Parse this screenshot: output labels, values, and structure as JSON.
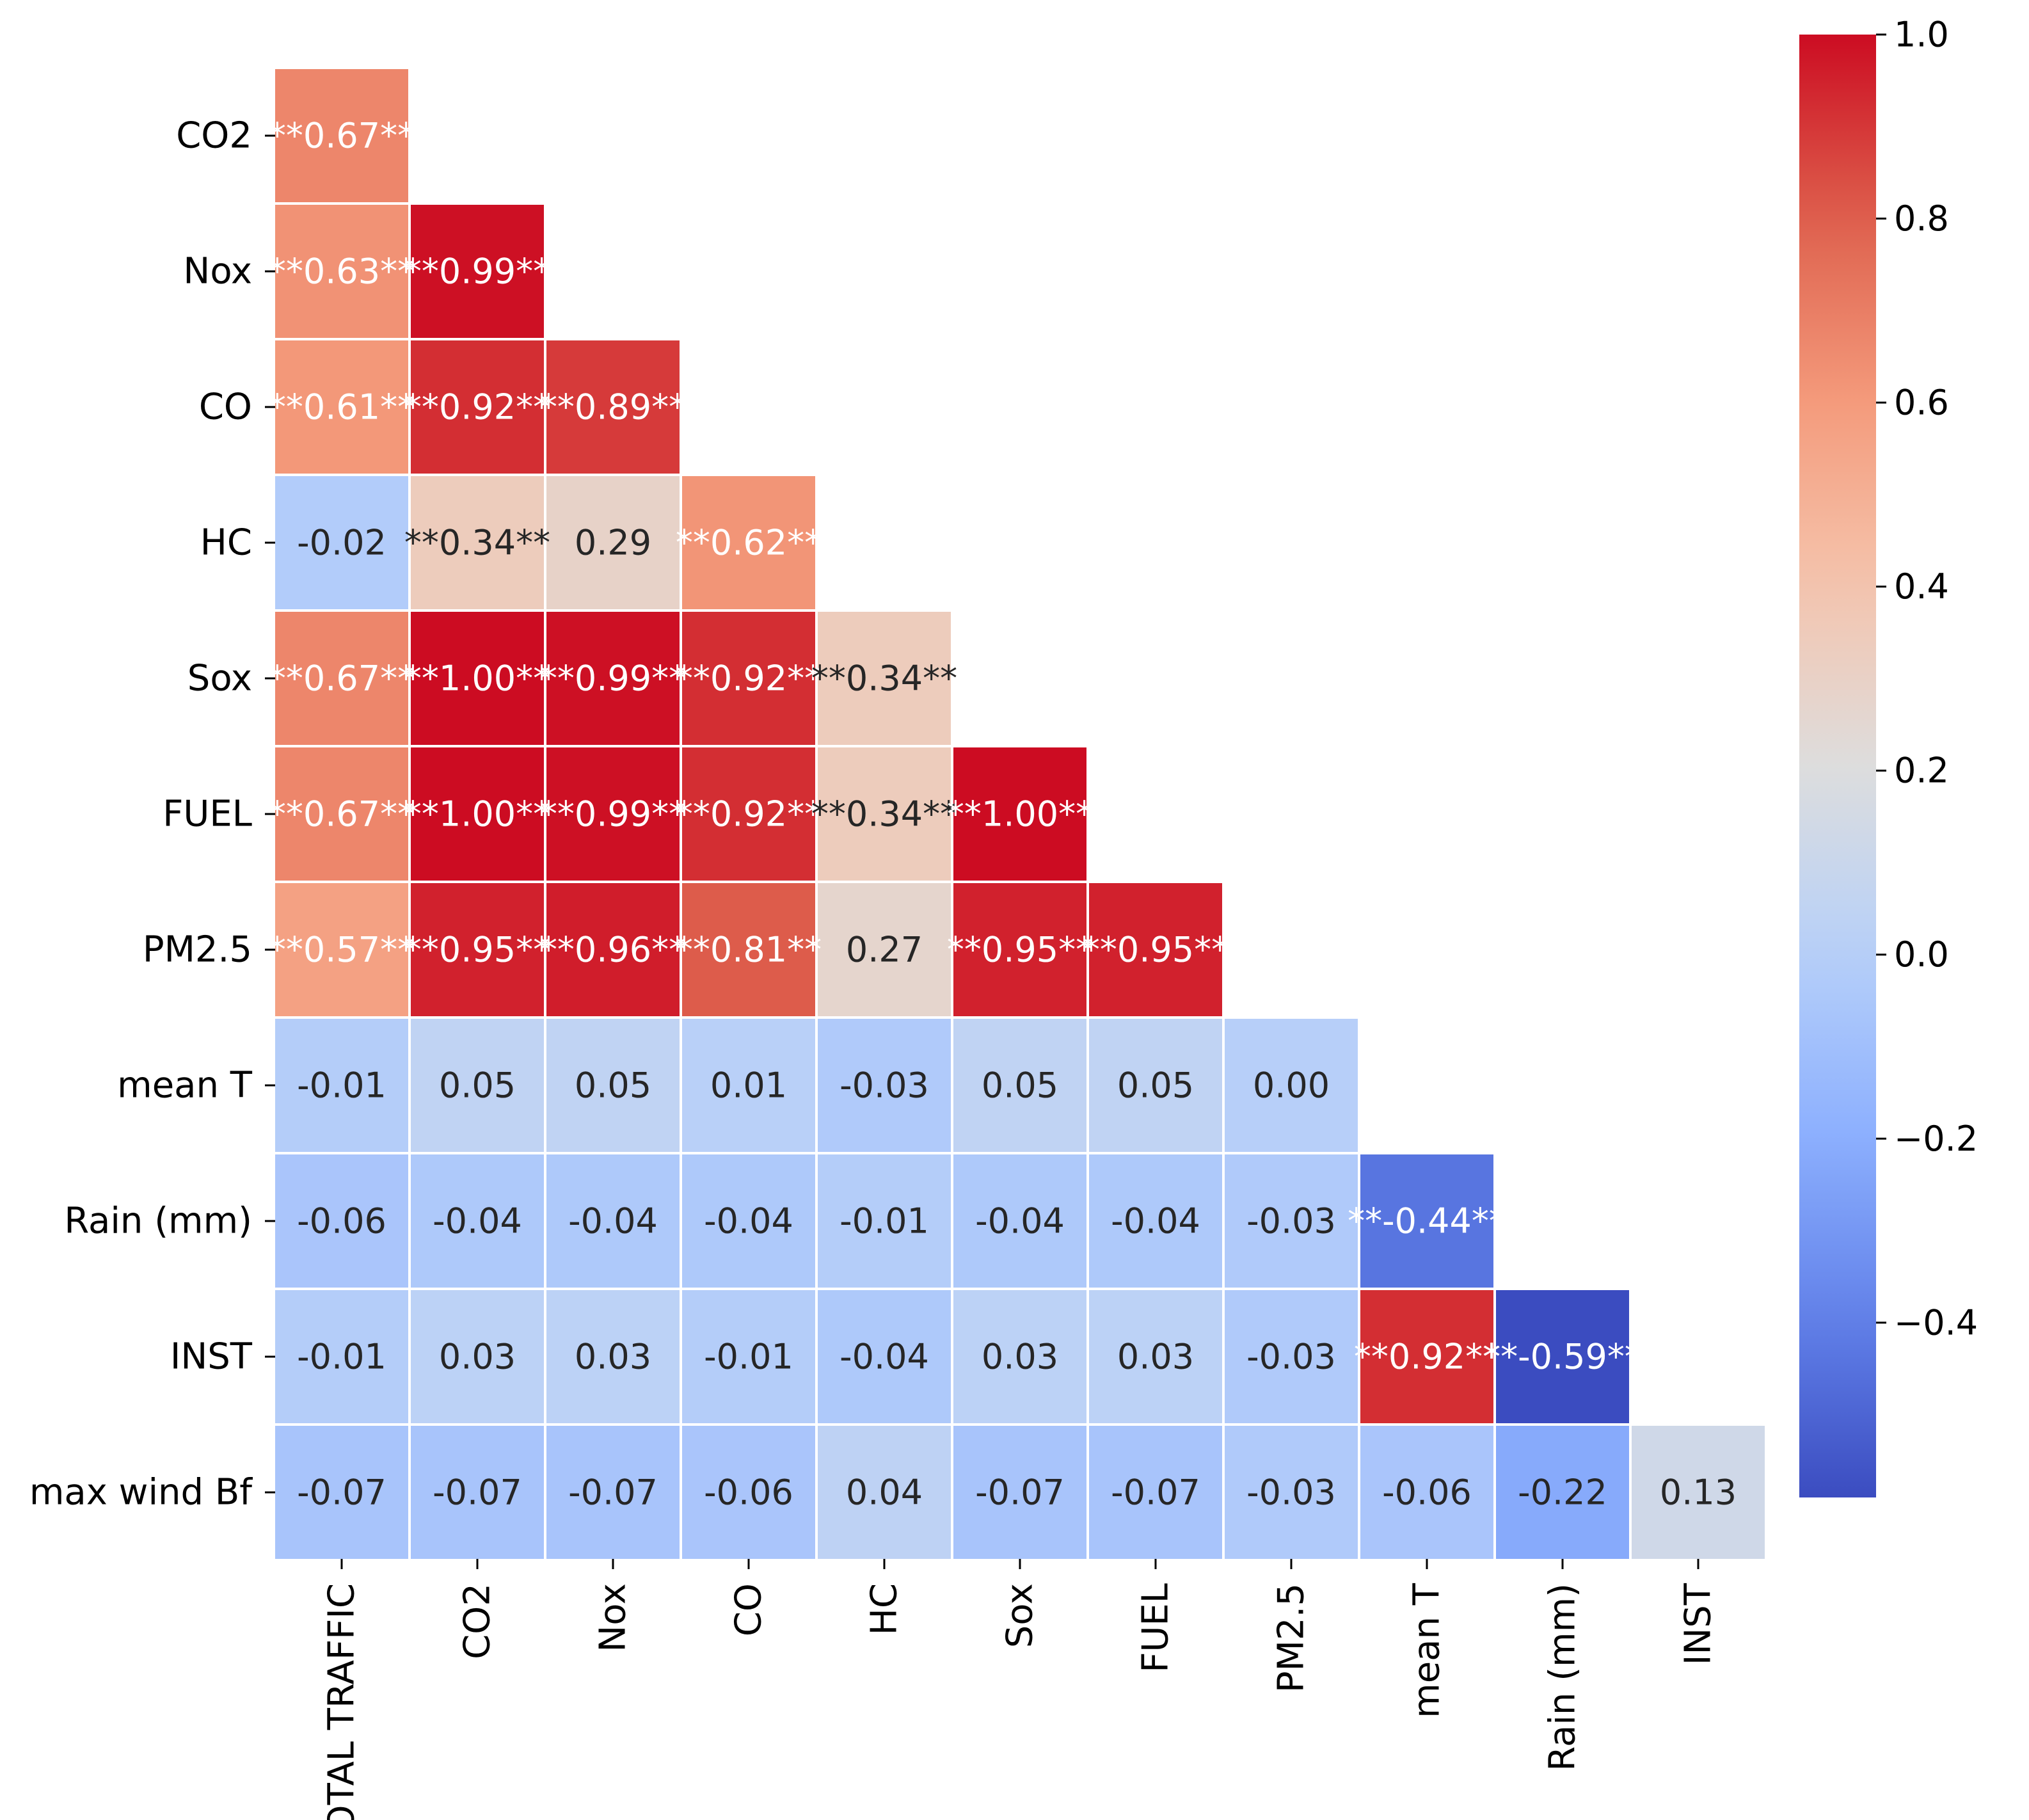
{
  "chart_data": {
    "type": "heatmap",
    "title": "",
    "mask": "lower-triangle",
    "row_labels": [
      "CO2",
      "Nox",
      "CO",
      "HC",
      "Sox",
      "FUEL",
      "PM2.5",
      "mean T",
      "Rain (mm)",
      "INST",
      "max wind Bf"
    ],
    "col_labels": [
      "TOTAL TRAFFIC",
      "CO2",
      "Nox",
      "CO",
      "HC",
      "Sox",
      "FUEL",
      "PM2.5",
      "mean T",
      "Rain (mm)",
      "INST"
    ],
    "values": [
      [
        0.67
      ],
      [
        0.63,
        0.99
      ],
      [
        0.61,
        0.92,
        0.89
      ],
      [
        -0.02,
        0.34,
        0.29,
        0.62
      ],
      [
        0.67,
        1.0,
        0.99,
        0.92,
        0.34
      ],
      [
        0.67,
        1.0,
        0.99,
        0.92,
        0.34,
        1.0
      ],
      [
        0.57,
        0.95,
        0.96,
        0.81,
        0.27,
        0.95,
        0.95
      ],
      [
        -0.01,
        0.05,
        0.05,
        0.01,
        -0.03,
        0.05,
        0.05,
        0.0
      ],
      [
        -0.06,
        -0.04,
        -0.04,
        -0.04,
        -0.01,
        -0.04,
        -0.04,
        -0.03,
        -0.44
      ],
      [
        -0.01,
        0.03,
        0.03,
        -0.01,
        -0.04,
        0.03,
        0.03,
        -0.03,
        0.92,
        -0.59
      ],
      [
        -0.07,
        -0.07,
        -0.07,
        -0.06,
        0.04,
        -0.07,
        -0.07,
        -0.03,
        -0.06,
        -0.22,
        0.13
      ]
    ],
    "annotations": [
      [
        "**0.67**"
      ],
      [
        "**0.63**",
        "**0.99**"
      ],
      [
        "**0.61**",
        "**0.92**",
        "**0.89**"
      ],
      [
        "-0.02",
        "**0.34**",
        "0.29",
        "**0.62**"
      ],
      [
        "**0.67**",
        "**1.00**",
        "**0.99**",
        "**0.92**",
        "**0.34**"
      ],
      [
        "**0.67**",
        "**1.00**",
        "**0.99**",
        "**0.92**",
        "**0.34**",
        "**1.00**"
      ],
      [
        "**0.57**",
        "**0.95**",
        "**0.96**",
        "**0.81**",
        "0.27",
        "**0.95**",
        "**0.95**"
      ],
      [
        "-0.01",
        "0.05",
        "0.05",
        "0.01",
        "-0.03",
        "0.05",
        "0.05",
        "0.00"
      ],
      [
        "-0.06",
        "-0.04",
        "-0.04",
        "-0.04",
        "-0.01",
        "-0.04",
        "-0.04",
        "-0.03",
        "**-0.44**"
      ],
      [
        "-0.01",
        "0.03",
        "0.03",
        "-0.01",
        "-0.04",
        "0.03",
        "0.03",
        "-0.03",
        "**0.92**",
        "**-0.59**"
      ],
      [
        "-0.07",
        "-0.07",
        "-0.07",
        "-0.06",
        "0.04",
        "-0.07",
        "-0.07",
        "-0.03",
        "-0.06",
        "-0.22",
        "0.13"
      ]
    ],
    "colormap": "coolwarm",
    "vmin": -0.59,
    "vmax": 1.0,
    "colorbar": {
      "position": "right",
      "ticks": [
        1.0,
        0.8,
        0.6,
        0.4,
        0.2,
        0.0,
        -0.2,
        -0.4
      ],
      "tick_labels": [
        "1.0",
        "0.8",
        "0.6",
        "0.4",
        "0.2",
        "0.0",
        "−0.2",
        "−0.4"
      ]
    },
    "grid": false
  }
}
